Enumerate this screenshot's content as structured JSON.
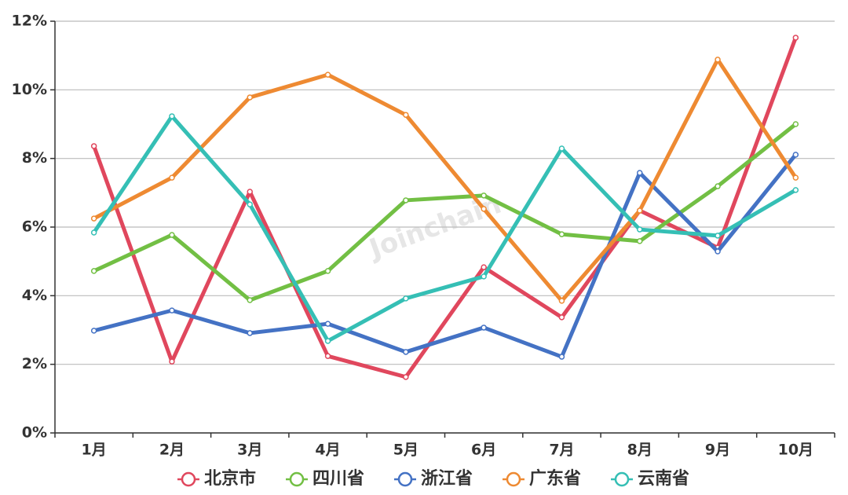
{
  "chart_data": {
    "type": "line",
    "watermark": "Joinchain",
    "categories": [
      "1月",
      "2月",
      "3月",
      "4月",
      "5月",
      "6月",
      "7月",
      "8月",
      "9月",
      "10月"
    ],
    "ylim": [
      0,
      12
    ],
    "yticks": [
      {
        "value": 0,
        "label": "0%"
      },
      {
        "value": 2,
        "label": "2%"
      },
      {
        "value": 4,
        "label": "4%"
      },
      {
        "value": 6,
        "label": "6%"
      },
      {
        "value": 8,
        "label": "8%"
      },
      {
        "value": 10,
        "label": "10%"
      },
      {
        "value": 12,
        "label": "12%"
      }
    ],
    "grid": true,
    "legend": "bottom",
    "series": [
      {
        "name": "北京市",
        "color": "#e0475d",
        "values": [
          8.36,
          2.08,
          7.03,
          2.24,
          1.63,
          4.83,
          3.37,
          6.48,
          5.4,
          11.52
        ]
      },
      {
        "name": "四川省",
        "color": "#72bf44",
        "values": [
          4.72,
          5.77,
          3.87,
          4.72,
          6.78,
          6.92,
          5.79,
          5.59,
          7.19,
          9.0
        ]
      },
      {
        "name": "浙江省",
        "color": "#4472c4",
        "values": [
          2.98,
          3.57,
          2.91,
          3.18,
          2.36,
          3.07,
          2.22,
          7.58,
          5.29,
          8.11
        ]
      },
      {
        "name": "广东省",
        "color": "#ee8a32",
        "values": [
          6.25,
          7.44,
          9.78,
          10.44,
          9.27,
          6.53,
          3.85,
          6.48,
          10.88,
          7.44
        ]
      },
      {
        "name": "云南省",
        "color": "#35bfb5",
        "values": [
          5.84,
          9.23,
          6.66,
          2.68,
          3.92,
          4.56,
          8.29,
          5.93,
          5.75,
          7.08
        ]
      }
    ]
  }
}
